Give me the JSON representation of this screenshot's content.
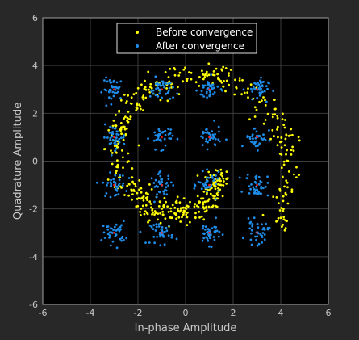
{
  "chart_data": {
    "type": "scatter",
    "title": "",
    "xlabel": "In-phase Amplitude",
    "ylabel": "Quadrature Amplitude",
    "xlim": [
      -6,
      6
    ],
    "ylim": [
      -6,
      6
    ],
    "xticks": [
      -6,
      -4,
      -2,
      0,
      2,
      4,
      6
    ],
    "yticks": [
      -6,
      -4,
      -2,
      0,
      2,
      4,
      6
    ],
    "grid": true,
    "legend_position": "top",
    "background_color": "#000000",
    "grid_color": "#3c3c3c",
    "constellation_levels": [
      -3,
      -1,
      1,
      3
    ],
    "series": [
      {
        "name": "Before convergence",
        "color": "#ffff00",
        "marker": "dot",
        "description_spiral": {
          "start_angle_deg": -35,
          "radius_range": [
            1.5,
            4.6
          ],
          "turns": 1.05
        }
      },
      {
        "name": "After convergence",
        "color": "#1f8ce8",
        "marker": "dot",
        "description_clusters": "16-QAM clusters centered at (±1, ±3) grid points, spread ≈ 0.25"
      }
    ],
    "ideal_points_color": "#ff2020"
  }
}
